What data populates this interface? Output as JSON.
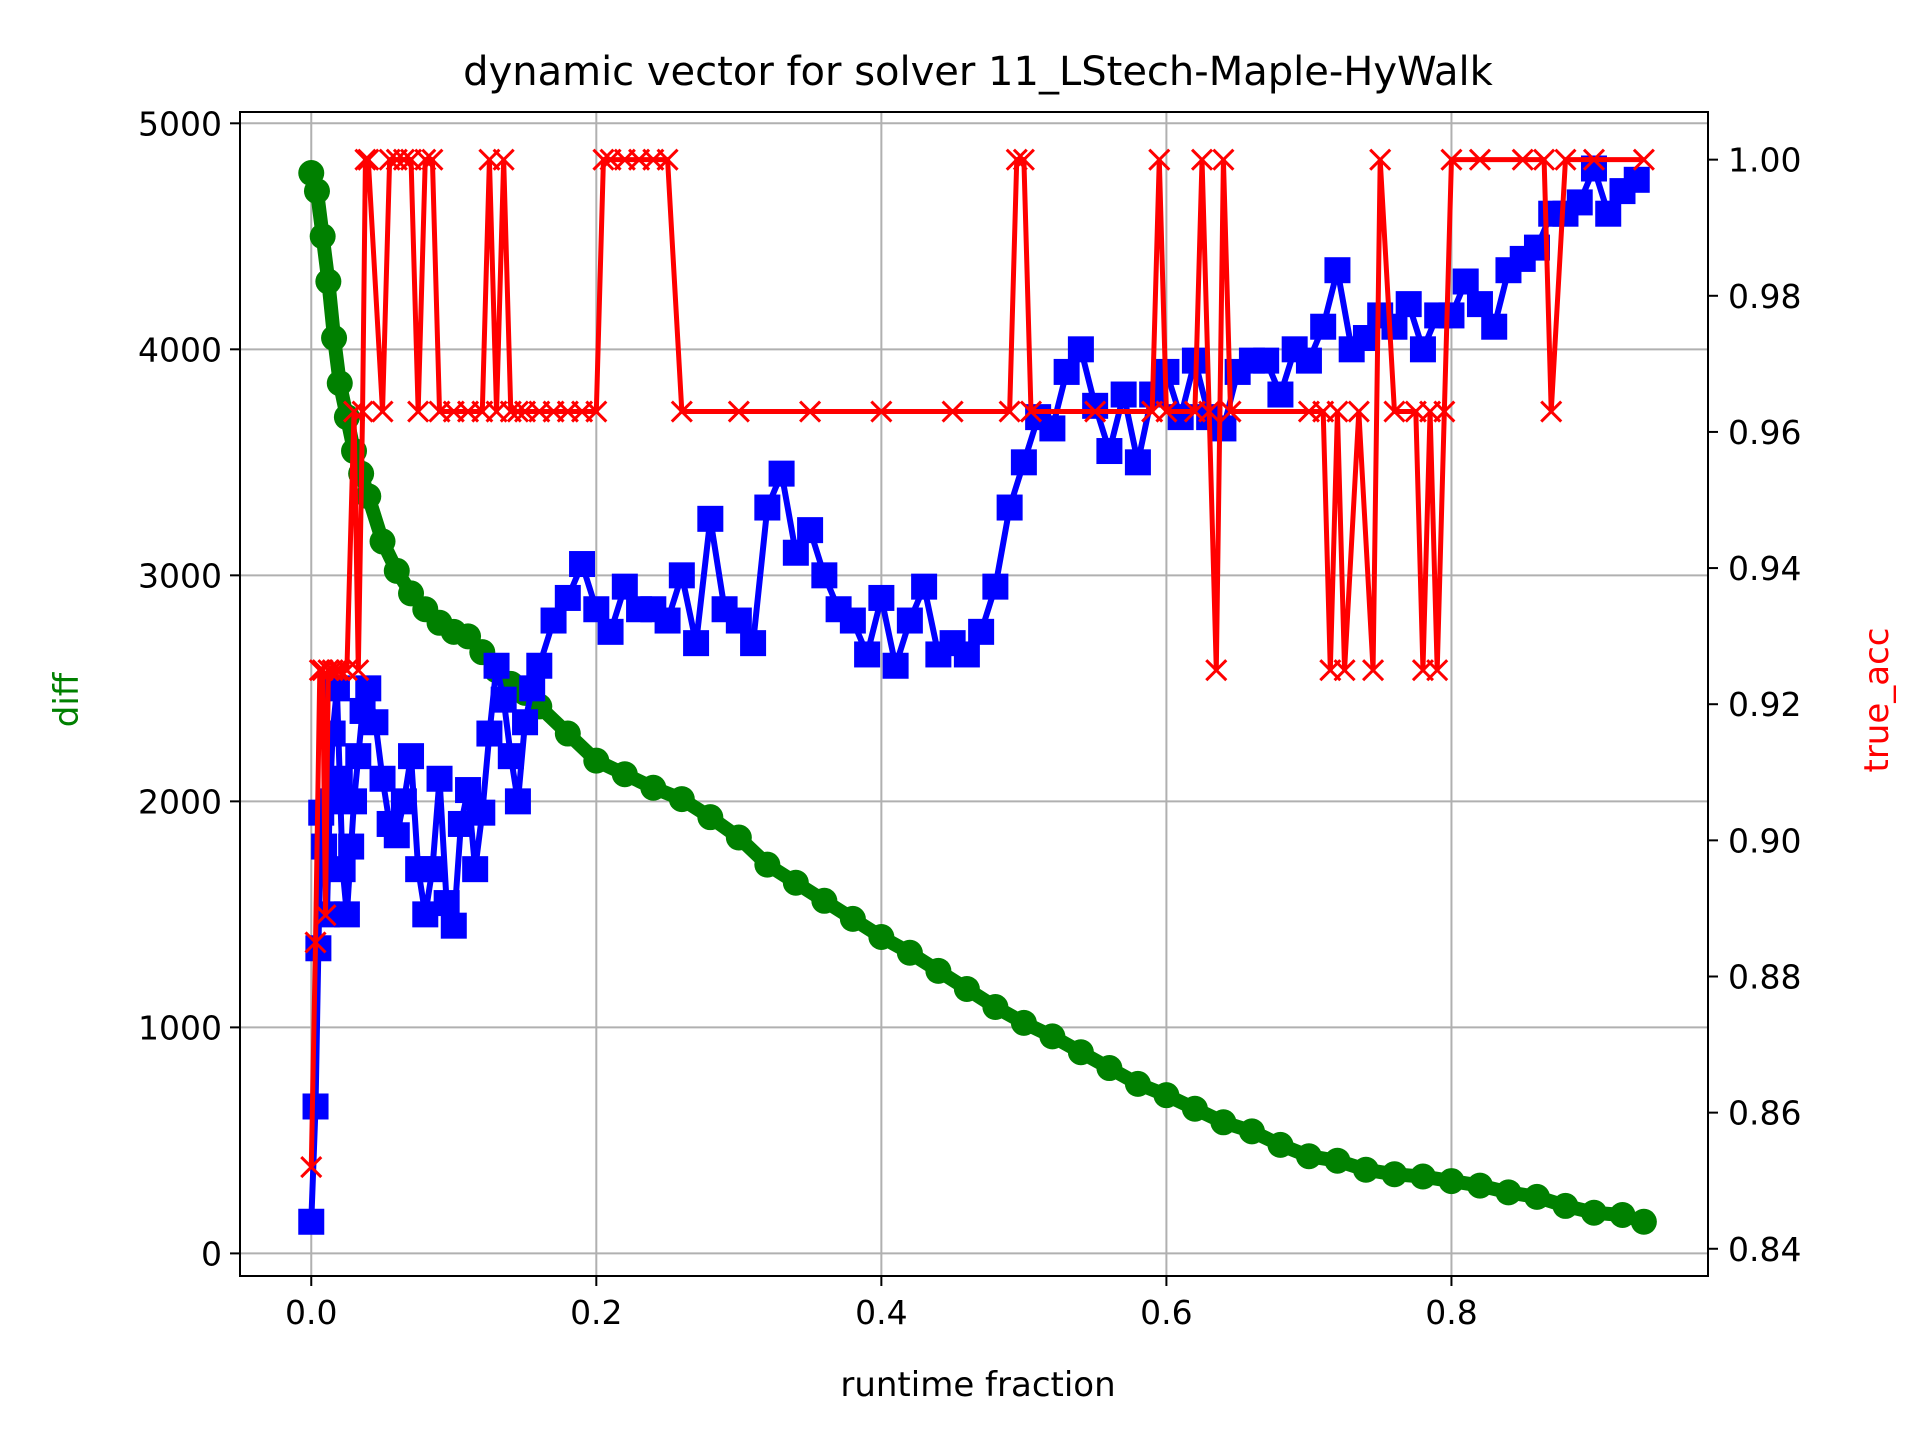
{
  "colors": {
    "diff_series": "#008000",
    "blue_series": "#0000ff",
    "true_acc_series": "#ff0000",
    "grid": "#b0b0b0",
    "axis": "#000000"
  },
  "chart_data": {
    "type": "scatter",
    "title": "dynamic vector for solver 11_LStech-Maple-HyWalk",
    "xlabel": "runtime fraction",
    "ylabel": "diff",
    "y2label": "true_acc",
    "xlim": [
      -0.05,
      0.98
    ],
    "ylim": [
      -100,
      5050
    ],
    "y2lim": [
      0.836,
      1.007
    ],
    "xticks": [
      0.0,
      0.2,
      0.4,
      0.6,
      0.8
    ],
    "xtick_labels": [
      "0.0",
      "0.2",
      "0.4",
      "0.6",
      "0.8"
    ],
    "yticks": [
      0,
      1000,
      2000,
      3000,
      4000,
      5000
    ],
    "ytick_labels": [
      "0",
      "1000",
      "2000",
      "3000",
      "4000",
      "5000"
    ],
    "y2ticks": [
      0.84,
      0.86,
      0.88,
      0.9,
      0.92,
      0.94,
      0.96,
      0.98,
      1.0
    ],
    "y2tick_labels": [
      "0.84",
      "0.86",
      "0.88",
      "0.90",
      "0.92",
      "0.94",
      "0.96",
      "0.98",
      "1.00"
    ],
    "grid": true,
    "series": [
      {
        "axis": "left",
        "marker": "circle",
        "color": "#008000",
        "x": [
          0.0,
          0.004,
          0.008,
          0.012,
          0.016,
          0.02,
          0.025,
          0.03,
          0.035,
          0.04,
          0.05,
          0.06,
          0.07,
          0.08,
          0.09,
          0.1,
          0.11,
          0.12,
          0.13,
          0.14,
          0.15,
          0.16,
          0.18,
          0.2,
          0.22,
          0.24,
          0.26,
          0.28,
          0.3,
          0.32,
          0.34,
          0.36,
          0.38,
          0.4,
          0.42,
          0.44,
          0.46,
          0.48,
          0.5,
          0.52,
          0.54,
          0.56,
          0.58,
          0.6,
          0.62,
          0.64,
          0.66,
          0.68,
          0.7,
          0.72,
          0.74,
          0.76,
          0.78,
          0.8,
          0.82,
          0.84,
          0.86,
          0.88,
          0.9,
          0.92,
          0.935
        ],
        "y": [
          4780,
          4700,
          4500,
          4300,
          4050,
          3850,
          3700,
          3550,
          3450,
          3350,
          3150,
          3020,
          2920,
          2850,
          2790,
          2750,
          2730,
          2660,
          2580,
          2520,
          2480,
          2420,
          2300,
          2180,
          2120,
          2060,
          2010,
          1930,
          1840,
          1720,
          1640,
          1560,
          1480,
          1400,
          1330,
          1250,
          1170,
          1090,
          1020,
          960,
          890,
          820,
          750,
          700,
          640,
          580,
          540,
          480,
          430,
          410,
          370,
          350,
          340,
          320,
          300,
          270,
          250,
          210,
          180,
          170,
          140
        ]
      },
      {
        "axis": "left",
        "marker": "square",
        "color": "#0000ff",
        "x": [
          0.0,
          0.003,
          0.005,
          0.007,
          0.009,
          0.011,
          0.013,
          0.015,
          0.018,
          0.02,
          0.022,
          0.025,
          0.028,
          0.03,
          0.033,
          0.036,
          0.04,
          0.045,
          0.05,
          0.055,
          0.06,
          0.065,
          0.07,
          0.075,
          0.08,
          0.085,
          0.09,
          0.095,
          0.1,
          0.105,
          0.11,
          0.115,
          0.12,
          0.125,
          0.13,
          0.135,
          0.14,
          0.145,
          0.15,
          0.155,
          0.16,
          0.17,
          0.18,
          0.19,
          0.2,
          0.21,
          0.22,
          0.23,
          0.24,
          0.25,
          0.26,
          0.27,
          0.28,
          0.29,
          0.3,
          0.31,
          0.32,
          0.33,
          0.34,
          0.35,
          0.36,
          0.37,
          0.38,
          0.39,
          0.4,
          0.41,
          0.42,
          0.43,
          0.44,
          0.45,
          0.46,
          0.47,
          0.48,
          0.49,
          0.5,
          0.51,
          0.52,
          0.53,
          0.54,
          0.55,
          0.56,
          0.57,
          0.58,
          0.59,
          0.6,
          0.61,
          0.62,
          0.63,
          0.64,
          0.65,
          0.66,
          0.67,
          0.68,
          0.69,
          0.7,
          0.71,
          0.72,
          0.73,
          0.74,
          0.75,
          0.76,
          0.77,
          0.78,
          0.79,
          0.8,
          0.81,
          0.82,
          0.83,
          0.84,
          0.85,
          0.86,
          0.87,
          0.88,
          0.89,
          0.9,
          0.91,
          0.92,
          0.93
        ],
        "y": [
          140,
          650,
          1350,
          1950,
          1800,
          1500,
          2000,
          2300,
          2500,
          2100,
          1700,
          1500,
          1800,
          2000,
          2200,
          2400,
          2500,
          2350,
          2100,
          1900,
          1850,
          2000,
          2200,
          1700,
          1500,
          1700,
          2100,
          1550,
          1450,
          1900,
          2050,
          1700,
          1950,
          2300,
          2600,
          2450,
          2200,
          2000,
          2350,
          2500,
          2600,
          2800,
          2900,
          3050,
          2850,
          2750,
          2950,
          2850,
          2850,
          2800,
          3000,
          2700,
          3250,
          2850,
          2800,
          2700,
          3300,
          3450,
          3100,
          3200,
          3000,
          2850,
          2800,
          2650,
          2900,
          2600,
          2800,
          2950,
          2650,
          2700,
          2650,
          2750,
          2950,
          3300,
          3500,
          3700,
          3650,
          3900,
          4000,
          3750,
          3550,
          3800,
          3500,
          3800,
          3900,
          3700,
          3950,
          3700,
          3650,
          3900,
          3950,
          3950,
          3800,
          4000,
          3950,
          4100,
          4350,
          4000,
          4050,
          4150,
          4100,
          4200,
          4000,
          4150,
          4150,
          4300,
          4200,
          4100,
          4350,
          4400,
          4450,
          4600,
          4600,
          4650,
          4800,
          4600,
          4700,
          4750
        ]
      },
      {
        "axis": "right",
        "marker": "x",
        "color": "#ff0000",
        "x": [
          0.0,
          0.003,
          0.006,
          0.008,
          0.01,
          0.012,
          0.015,
          0.018,
          0.02,
          0.025,
          0.03,
          0.033,
          0.036,
          0.038,
          0.04,
          0.05,
          0.055,
          0.06,
          0.065,
          0.07,
          0.075,
          0.08,
          0.085,
          0.09,
          0.1,
          0.11,
          0.12,
          0.125,
          0.13,
          0.135,
          0.14,
          0.145,
          0.15,
          0.16,
          0.17,
          0.18,
          0.19,
          0.2,
          0.205,
          0.21,
          0.22,
          0.23,
          0.24,
          0.25,
          0.26,
          0.3,
          0.35,
          0.4,
          0.45,
          0.49,
          0.495,
          0.5,
          0.505,
          0.55,
          0.59,
          0.595,
          0.6,
          0.62,
          0.625,
          0.63,
          0.635,
          0.64,
          0.645,
          0.7,
          0.71,
          0.715,
          0.72,
          0.725,
          0.735,
          0.745,
          0.75,
          0.76,
          0.775,
          0.78,
          0.785,
          0.79,
          0.795,
          0.8,
          0.82,
          0.85,
          0.865,
          0.87,
          0.88,
          0.9,
          0.935
        ],
        "y": [
          0.852,
          0.885,
          0.925,
          0.925,
          0.889,
          0.925,
          0.925,
          0.925,
          0.925,
          0.925,
          0.963,
          0.925,
          0.963,
          1.0,
          1.0,
          0.963,
          1.0,
          1.0,
          1.0,
          1.0,
          0.963,
          1.0,
          1.0,
          0.963,
          0.963,
          0.963,
          0.963,
          1.0,
          0.963,
          1.0,
          0.963,
          0.963,
          0.963,
          0.963,
          0.963,
          0.963,
          0.963,
          0.963,
          1.0,
          1.0,
          1.0,
          1.0,
          1.0,
          1.0,
          0.963,
          0.963,
          0.963,
          0.963,
          0.963,
          0.963,
          1.0,
          1.0,
          0.963,
          0.963,
          0.963,
          1.0,
          0.963,
          0.963,
          1.0,
          0.963,
          0.925,
          1.0,
          0.963,
          0.963,
          0.963,
          0.925,
          0.963,
          0.925,
          0.963,
          0.925,
          1.0,
          0.963,
          0.963,
          0.925,
          0.963,
          0.925,
          0.963,
          1.0,
          1.0,
          1.0,
          1.0,
          0.963,
          1.0,
          1.0,
          1.0
        ]
      }
    ]
  }
}
